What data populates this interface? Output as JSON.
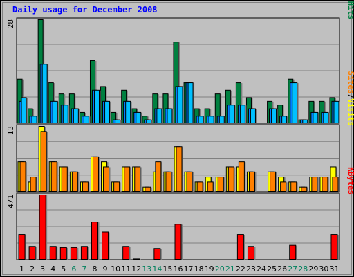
{
  "chart_data": {
    "type": "bar",
    "title": "Daily usage for December 2008",
    "categories": [
      "1",
      "2",
      "3",
      "4",
      "5",
      "6",
      "7",
      "8",
      "9",
      "10",
      "11",
      "12",
      "13",
      "14",
      "15",
      "16",
      "17",
      "18",
      "19",
      "20",
      "21",
      "22",
      "23",
      "24",
      "25",
      "26",
      "27",
      "28",
      "29",
      "30",
      "31"
    ],
    "weekend_days": [
      "6",
      "7",
      "13",
      "14",
      "20",
      "21",
      "27",
      "28"
    ],
    "colors": {
      "hits": "#008040",
      "files": "#0080ff",
      "pages": "#00c0ff",
      "visits": "#ffff00",
      "sites": "#ff8000",
      "kbytes": "#ff0000",
      "title": "#0000ff",
      "weekend_label": "#00805c",
      "plot_bg": "#c0c0c0",
      "frame": "#808080"
    },
    "panels": [
      {
        "max_label": "28",
        "ylim": [
          0,
          28
        ],
        "legend": [
          {
            "text": "Pages",
            "color": "#00c0ff"
          },
          {
            "text": "/",
            "color": "#000000"
          },
          {
            "text": "Files",
            "color": "#0080ff"
          },
          {
            "text": "/",
            "color": "#000000"
          },
          {
            "text": "Hits",
            "color": "#008040"
          }
        ],
        "series": [
          {
            "name": "Hits",
            "color": "#008040",
            "values": [
              12,
              4,
              28,
              11,
              8,
              8,
              3,
              17,
              10,
              3,
              9,
              4,
              2,
              8,
              8,
              22,
              11,
              4,
              4,
              8,
              9,
              11,
              7,
              0,
              6,
              5,
              12,
              1,
              6,
              6,
              7
            ]
          },
          {
            "name": "Files",
            "color": "#0080ff",
            "values": [
              6,
              2,
              16,
              6,
              5,
              4,
              2,
              9,
              6,
              1,
              6,
              3,
              1,
              4,
              4,
              10,
              11,
              2,
              2,
              2,
              5,
              5,
              4,
              0,
              4,
              2,
              11,
              1,
              3,
              3,
              6
            ]
          },
          {
            "name": "Pages",
            "color": "#00c0ff",
            "values": [
              7,
              2,
              16,
              6,
              5,
              4,
              2,
              9,
              6,
              1,
              6,
              3,
              1,
              4,
              4,
              10,
              11,
              2,
              2,
              2,
              5,
              5,
              4,
              0,
              4,
              2,
              11,
              1,
              3,
              3,
              6
            ]
          }
        ]
      },
      {
        "max_label": "13",
        "ylim": [
          0,
          13
        ],
        "legend": [
          {
            "text": "Sites",
            "color": "#ff8000"
          },
          {
            "text": "/",
            "color": "#000000"
          },
          {
            "text": "Visits",
            "color": "#ffff00"
          }
        ],
        "series": [
          {
            "name": "Visits",
            "color": "#ffff00",
            "values": [
              6,
              2,
              13,
              6,
              5,
              4,
              2,
              7,
              6,
              2,
              5,
              5,
              1,
              4,
              4,
              9,
              4,
              2,
              3,
              3,
              5,
              5,
              4,
              0,
              4,
              3,
              2,
              1,
              3,
              3,
              5
            ]
          },
          {
            "name": "Sites",
            "color": "#ff8000",
            "values": [
              6,
              3,
              12,
              6,
              5,
              4,
              2,
              7,
              5,
              2,
              5,
              5,
              1,
              6,
              4,
              9,
              4,
              2,
              2,
              3,
              5,
              6,
              4,
              0,
              4,
              2,
              2,
              1,
              3,
              3,
              3
            ]
          }
        ]
      },
      {
        "max_label": "471",
        "ylim": [
          0,
          471
        ],
        "legend": [
          {
            "text": "KBytes",
            "color": "#ff0000"
          }
        ],
        "series": [
          {
            "name": "KBytes",
            "color": "#ff0000",
            "values": [
              185,
              99,
              471,
              99,
              91,
              91,
              99,
              275,
              203,
              0,
              99,
              8,
              0,
              84,
              0,
              259,
              0,
              0,
              0,
              0,
              0,
              185,
              99,
              0,
              0,
              0,
              107,
              0,
              0,
              0,
              185
            ]
          }
        ]
      }
    ]
  }
}
